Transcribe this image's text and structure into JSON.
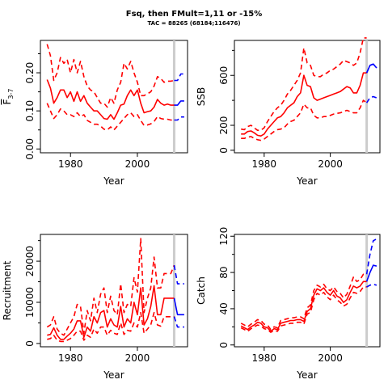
{
  "title": "Fsq, then FMult=1,11 or -15%",
  "subtitle": "TAC = 88265 (68184;116476)",
  "colors": {
    "historic": "#ff0000",
    "forecast": "#0000ff",
    "marker": "#cccccc"
  },
  "chart_data": [
    {
      "type": "line",
      "xlabel": "Year",
      "ylabel": "F",
      "ylabel_sub": "3-7",
      "xlim": [
        1971,
        2015
      ],
      "ylim": [
        -0.01,
        0.285
      ],
      "xticks": [
        1980,
        2000
      ],
      "yticks": [
        0.0,
        0.1,
        0.2
      ],
      "ytick_labels": [
        "0.00",
        "0.10",
        "0.20"
      ],
      "minor_yticks": [
        0.05,
        0.15,
        0.25
      ],
      "vline": 2011,
      "historic": {
        "years": [
          1973,
          1974,
          1975,
          1976,
          1977,
          1978,
          1979,
          1980,
          1981,
          1982,
          1983,
          1984,
          1985,
          1986,
          1987,
          1988,
          1989,
          1990,
          1991,
          1992,
          1993,
          1994,
          1995,
          1996,
          1997,
          1998,
          1999,
          2000,
          2001,
          2002,
          2003,
          2004,
          2005,
          2006,
          2007,
          2008,
          2009,
          2010,
          2011
        ],
        "mid": [
          0.182,
          0.16,
          0.12,
          0.135,
          0.155,
          0.155,
          0.135,
          0.15,
          0.125,
          0.15,
          0.125,
          0.14,
          0.12,
          0.11,
          0.1,
          0.1,
          0.09,
          0.08,
          0.078,
          0.09,
          0.078,
          0.095,
          0.115,
          0.118,
          0.14,
          0.155,
          0.14,
          0.155,
          0.12,
          0.095,
          0.098,
          0.1,
          0.11,
          0.13,
          0.12,
          0.115,
          0.118,
          0.115,
          0.115
        ],
        "upper": [
          0.275,
          0.245,
          0.18,
          0.2,
          0.24,
          0.225,
          0.235,
          0.2,
          0.235,
          0.2,
          0.23,
          0.19,
          0.165,
          0.155,
          0.15,
          0.135,
          0.12,
          0.12,
          0.11,
          0.135,
          0.12,
          0.155,
          0.175,
          0.225,
          0.21,
          0.23,
          0.2,
          0.175,
          0.14,
          0.14,
          0.145,
          0.15,
          0.165,
          0.19,
          0.185,
          0.175,
          0.178,
          0.178,
          0.18
        ],
        "lower": [
          0.12,
          0.1,
          0.08,
          0.09,
          0.105,
          0.1,
          0.09,
          0.09,
          0.085,
          0.095,
          0.085,
          0.09,
          0.075,
          0.07,
          0.065,
          0.065,
          0.06,
          0.052,
          0.05,
          0.058,
          0.05,
          0.06,
          0.07,
          0.08,
          0.09,
          0.095,
          0.085,
          0.09,
          0.075,
          0.062,
          0.063,
          0.066,
          0.072,
          0.085,
          0.08,
          0.078,
          0.078,
          0.076,
          0.076
        ]
      },
      "forecast": {
        "years": [
          2011,
          2012,
          2013,
          2014
        ],
        "mid": [
          0.115,
          0.115,
          0.126,
          0.126
        ],
        "upper": [
          0.18,
          0.18,
          0.197,
          0.197
        ],
        "lower": [
          0.076,
          0.076,
          0.084,
          0.084
        ]
      }
    },
    {
      "type": "line",
      "xlabel": "Year",
      "ylabel": "SSB",
      "xlim": [
        1971,
        2015
      ],
      "ylim": [
        -20,
        880
      ],
      "xticks": [
        1980,
        2000
      ],
      "yticks": [
        0,
        200,
        600
      ],
      "ytick_labels": [
        "0",
        "200",
        "600"
      ],
      "minor_yticks": [
        400,
        800
      ],
      "vline": 2011,
      "historic": {
        "years": [
          1973,
          1974,
          1975,
          1976,
          1977,
          1978,
          1979,
          1980,
          1981,
          1982,
          1983,
          1984,
          1985,
          1986,
          1987,
          1988,
          1989,
          1990,
          1991,
          1992,
          1993,
          1994,
          1995,
          1996,
          1997,
          1998,
          1999,
          2000,
          2001,
          2002,
          2003,
          2004,
          2005,
          2006,
          2007,
          2008,
          2009,
          2010,
          2011
        ],
        "mid": [
          130,
          130,
          150,
          155,
          140,
          120,
          115,
          130,
          170,
          200,
          230,
          260,
          270,
          300,
          340,
          360,
          380,
          430,
          460,
          600,
          520,
          510,
          420,
          400,
          410,
          420,
          430,
          440,
          450,
          460,
          470,
          490,
          510,
          500,
          460,
          460,
          520,
          620,
          620
        ],
        "upper": [
          170,
          165,
          190,
          200,
          180,
          160,
          160,
          180,
          230,
          270,
          310,
          340,
          360,
          400,
          450,
          480,
          520,
          560,
          620,
          820,
          700,
          680,
          600,
          590,
          590,
          610,
          620,
          640,
          650,
          670,
          690,
          720,
          710,
          700,
          680,
          700,
          780,
          900,
          900
        ],
        "lower": [
          95,
          95,
          105,
          110,
          95,
          85,
          80,
          90,
          110,
          130,
          150,
          165,
          170,
          180,
          210,
          230,
          240,
          270,
          300,
          370,
          340,
          340,
          280,
          260,
          260,
          270,
          270,
          280,
          290,
          295,
          300,
          310,
          320,
          310,
          300,
          300,
          340,
          400,
          380
        ]
      },
      "forecast": {
        "years": [
          2011,
          2012,
          2013,
          2014
        ],
        "mid": [
          620,
          680,
          690,
          660
        ],
        "upper": [
          620,
          680,
          690,
          660
        ],
        "lower": [
          380,
          420,
          430,
          420
        ]
      }
    },
    {
      "type": "line",
      "xlabel": "Year",
      "ylabel": "Recruitment",
      "xlim": [
        1971,
        2015
      ],
      "ylim": [
        -800,
        26500
      ],
      "xticks": [
        1980,
        2000
      ],
      "yticks": [
        0,
        10000,
        20000
      ],
      "ytick_labels": [
        "0",
        "10000",
        "20000"
      ],
      "minor_yticks": [
        5000,
        15000,
        25000
      ],
      "vline": 2011,
      "historic": {
        "years": [
          1973,
          1974,
          1975,
          1976,
          1977,
          1978,
          1979,
          1980,
          1981,
          1982,
          1983,
          1984,
          1985,
          1986,
          1987,
          1988,
          1989,
          1990,
          1991,
          1992,
          1993,
          1994,
          1995,
          1996,
          1997,
          1998,
          1999,
          2000,
          2001,
          2002,
          2003,
          2004,
          2005,
          2006,
          2007,
          2008,
          2009,
          2010,
          2011
        ],
        "mid": [
          2000,
          2200,
          3800,
          2000,
          1000,
          1000,
          1800,
          2500,
          3500,
          5500,
          5500,
          1500,
          4000,
          3000,
          6500,
          5000,
          7500,
          8000,
          4000,
          6000,
          4500,
          4000,
          9000,
          4000,
          6000,
          5000,
          10000,
          7000,
          13500,
          4500,
          6000,
          9000,
          14000,
          7000,
          7000,
          11000,
          11000,
          11000,
          11000
        ],
        "upper": [
          4000,
          4500,
          6500,
          3500,
          2500,
          2000,
          3500,
          5000,
          6500,
          9500,
          9000,
          2500,
          8000,
          5500,
          11000,
          7500,
          12000,
          13500,
          7500,
          11500,
          8000,
          7000,
          14500,
          7500,
          9500,
          9000,
          16000,
          12500,
          25500,
          7500,
          11000,
          13500,
          21000,
          13500,
          13500,
          17000,
          17000,
          17000,
          19000
        ],
        "lower": [
          1000,
          1200,
          2000,
          800,
          500,
          500,
          800,
          1200,
          2000,
          3000,
          3000,
          800,
          2000,
          1500,
          3500,
          2500,
          4000,
          4000,
          2000,
          3200,
          2500,
          2200,
          5000,
          2200,
          3200,
          3000,
          5000,
          4000,
          7500,
          2500,
          3500,
          4500,
          7500,
          4500,
          4200,
          6500,
          6500,
          6500,
          6500
        ]
      },
      "forecast": {
        "years": [
          2011,
          2012,
          2013,
          2014
        ],
        "mid": [
          11000,
          7000,
          7000,
          7000
        ],
        "upper": [
          19000,
          14500,
          14500,
          14500
        ],
        "lower": [
          6500,
          4000,
          4000,
          4000
        ]
      }
    },
    {
      "type": "line",
      "xlabel": "Year",
      "ylabel": "Catch",
      "xlim": [
        1971,
        2015
      ],
      "ylim": [
        -2,
        122
      ],
      "xticks": [
        1980,
        2000
      ],
      "yticks": [
        0,
        40,
        80,
        120
      ],
      "ytick_labels": [
        "0",
        "40",
        "80",
        "120"
      ],
      "minor_yticks": [
        20,
        60,
        100
      ],
      "vline": 2011,
      "historic": {
        "years": [
          1973,
          1974,
          1975,
          1976,
          1977,
          1978,
          1979,
          1980,
          1981,
          1982,
          1983,
          1984,
          1985,
          1986,
          1987,
          1988,
          1989,
          1990,
          1991,
          1992,
          1993,
          1994,
          1995,
          1996,
          1997,
          1998,
          1999,
          2000,
          2001,
          2002,
          2003,
          2004,
          2005,
          2006,
          2007,
          2008,
          2009,
          2010,
          2011
        ],
        "mid": [
          21,
          19,
          17,
          20,
          22,
          25,
          24,
          20,
          19,
          15,
          18,
          17,
          24,
          25,
          26,
          27,
          27,
          28,
          28,
          26,
          37,
          40,
          55,
          62,
          60,
          63,
          58,
          55,
          60,
          54,
          52,
          47,
          50,
          58,
          65,
          63,
          65,
          70,
          70
        ],
        "upper": [
          24,
          22,
          20,
          23,
          25,
          28,
          27,
          23,
          22,
          17,
          20,
          19,
          27,
          28,
          29,
          30,
          30,
          31,
          31,
          29,
          41,
          44,
          60,
          66,
          64,
          67,
          62,
          60,
          64,
          59,
          57,
          52,
          56,
          65,
          75,
          70,
          72,
          78,
          78
        ],
        "lower": [
          19,
          17,
          15,
          18,
          20,
          22,
          21,
          18,
          17,
          14,
          16,
          15,
          21,
          22,
          23,
          24,
          24,
          25,
          25,
          23,
          34,
          36,
          50,
          57,
          55,
          58,
          53,
          50,
          55,
          50,
          47,
          43,
          45,
          52,
          58,
          57,
          59,
          64,
          64
        ]
      },
      "forecast": {
        "years": [
          2011,
          2012,
          2013,
          2014
        ],
        "mid": [
          70,
          80,
          88,
          87
        ],
        "upper": [
          78,
          100,
          115,
          117
        ],
        "lower": [
          64,
          66,
          67,
          66
        ]
      }
    }
  ]
}
